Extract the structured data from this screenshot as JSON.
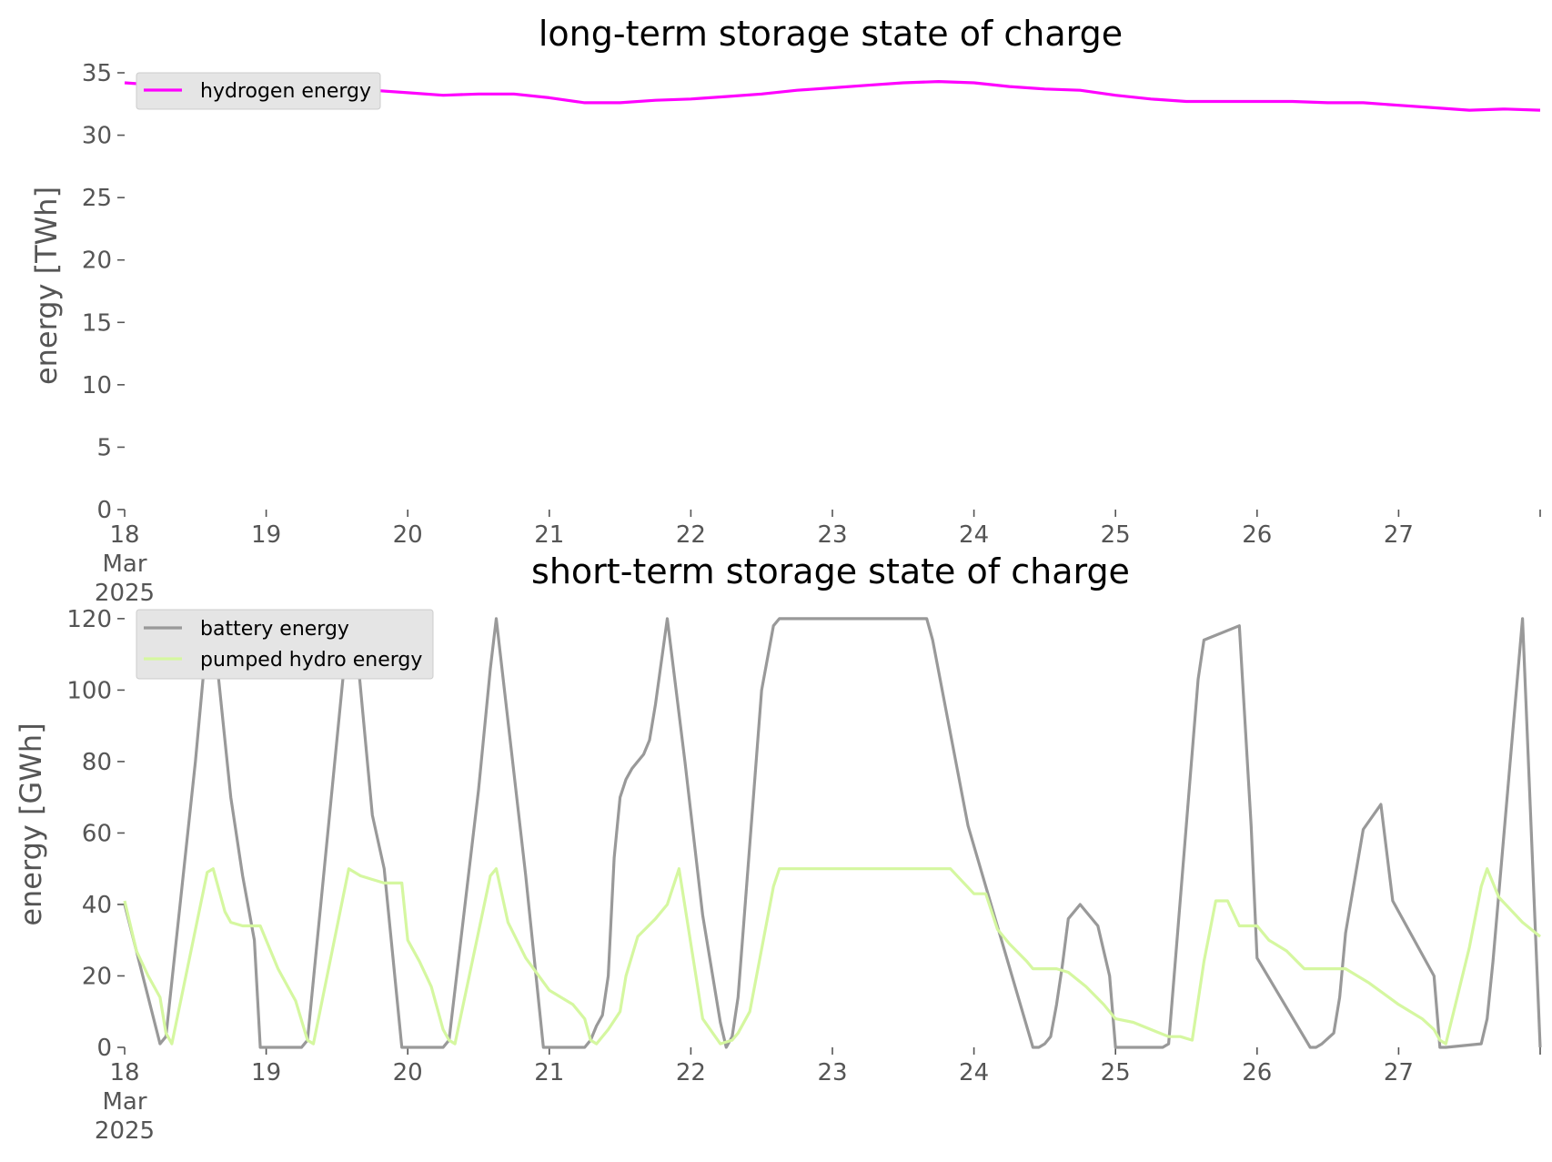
{
  "chart_data": [
    {
      "type": "line",
      "title": "long-term storage state of charge",
      "xlabel": "",
      "ylabel": "energy [TWh]",
      "ylim": [
        0,
        35
      ],
      "yticks": [
        0,
        5,
        10,
        15,
        20,
        25,
        30,
        35
      ],
      "xlim": [
        "2025-03-18T00:00",
        "2025-03-28T00:00"
      ],
      "xticks": [
        {
          "t": "2025-03-18T00:00",
          "label": [
            "18",
            "Mar",
            "2025"
          ]
        },
        {
          "t": "2025-03-19T00:00",
          "label": [
            "19"
          ]
        },
        {
          "t": "2025-03-20T00:00",
          "label": [
            "20"
          ]
        },
        {
          "t": "2025-03-21T00:00",
          "label": [
            "21"
          ]
        },
        {
          "t": "2025-03-22T00:00",
          "label": [
            "22"
          ]
        },
        {
          "t": "2025-03-23T00:00",
          "label": [
            "23"
          ]
        },
        {
          "t": "2025-03-24T00:00",
          "label": [
            "24"
          ]
        },
        {
          "t": "2025-03-25T00:00",
          "label": [
            "25"
          ]
        },
        {
          "t": "2025-03-26T00:00",
          "label": [
            "26"
          ]
        },
        {
          "t": "2025-03-27T00:00",
          "label": [
            "27"
          ]
        },
        {
          "t": "2025-03-28T00:00",
          "label": [
            ""
          ]
        }
      ],
      "grid": false,
      "legend_position": "top-left",
      "series": [
        {
          "name": "hydrogen energy",
          "color": "#ff00ff",
          "x": [
            "2025-03-18T00:00",
            "2025-03-18T06:00",
            "2025-03-18T12:00",
            "2025-03-18T18:00",
            "2025-03-19T00:00",
            "2025-03-19T06:00",
            "2025-03-19T12:00",
            "2025-03-19T18:00",
            "2025-03-20T00:00",
            "2025-03-20T06:00",
            "2025-03-20T12:00",
            "2025-03-20T18:00",
            "2025-03-21T00:00",
            "2025-03-21T06:00",
            "2025-03-21T12:00",
            "2025-03-21T18:00",
            "2025-03-22T00:00",
            "2025-03-22T06:00",
            "2025-03-22T12:00",
            "2025-03-22T18:00",
            "2025-03-23T00:00",
            "2025-03-23T06:00",
            "2025-03-23T12:00",
            "2025-03-23T18:00",
            "2025-03-24T00:00",
            "2025-03-24T06:00",
            "2025-03-24T12:00",
            "2025-03-24T18:00",
            "2025-03-25T00:00",
            "2025-03-25T06:00",
            "2025-03-25T12:00",
            "2025-03-25T18:00",
            "2025-03-26T00:00",
            "2025-03-26T06:00",
            "2025-03-26T12:00",
            "2025-03-26T18:00",
            "2025-03-27T00:00",
            "2025-03-27T06:00",
            "2025-03-27T12:00",
            "2025-03-27T18:00",
            "2025-03-28T00:00"
          ],
          "values": [
            34.2,
            34.0,
            34.1,
            34.3,
            34.1,
            33.8,
            33.6,
            33.6,
            33.4,
            33.2,
            33.3,
            33.3,
            33.0,
            32.6,
            32.6,
            32.8,
            32.9,
            33.1,
            33.3,
            33.6,
            33.8,
            34.0,
            34.2,
            34.3,
            34.2,
            33.9,
            33.7,
            33.6,
            33.2,
            32.9,
            32.7,
            32.7,
            32.7,
            32.7,
            32.6,
            32.6,
            32.4,
            32.2,
            32.0,
            32.1,
            32.0
          ]
        }
      ]
    },
    {
      "type": "line",
      "title": "short-term storage state of charge",
      "xlabel": "",
      "ylabel": "energy [GWh]",
      "ylim": [
        0,
        122
      ],
      "yticks": [
        0,
        20,
        40,
        60,
        80,
        100,
        120
      ],
      "xlim": [
        "2025-03-18T00:00",
        "2025-03-28T00:00"
      ],
      "xticks": [
        {
          "t": "2025-03-18T00:00",
          "label": [
            "18",
            "Mar",
            "2025"
          ]
        },
        {
          "t": "2025-03-19T00:00",
          "label": [
            "19"
          ]
        },
        {
          "t": "2025-03-20T00:00",
          "label": [
            "20"
          ]
        },
        {
          "t": "2025-03-21T00:00",
          "label": [
            "21"
          ]
        },
        {
          "t": "2025-03-22T00:00",
          "label": [
            "22"
          ]
        },
        {
          "t": "2025-03-23T00:00",
          "label": [
            "23"
          ]
        },
        {
          "t": "2025-03-24T00:00",
          "label": [
            "24"
          ]
        },
        {
          "t": "2025-03-25T00:00",
          "label": [
            "25"
          ]
        },
        {
          "t": "2025-03-26T00:00",
          "label": [
            "26"
          ]
        },
        {
          "t": "2025-03-27T00:00",
          "label": [
            "27"
          ]
        },
        {
          "t": "2025-03-28T00:00",
          "label": [
            ""
          ]
        }
      ],
      "grid": false,
      "legend_position": "top-left",
      "series": [
        {
          "name": "battery energy",
          "color": "#999999",
          "x": [
            "2025-03-18T00:00",
            "2025-03-18T06:00",
            "2025-03-18T07:00",
            "2025-03-18T12:00",
            "2025-03-18T14:00",
            "2025-03-18T15:00",
            "2025-03-18T18:00",
            "2025-03-18T20:00",
            "2025-03-18T22:00",
            "2025-03-18T23:00",
            "2025-03-19T06:00",
            "2025-03-19T07:00",
            "2025-03-19T14:00",
            "2025-03-19T15:00",
            "2025-03-19T18:00",
            "2025-03-19T20:00",
            "2025-03-19T23:00",
            "2025-03-20T06:00",
            "2025-03-20T07:00",
            "2025-03-20T12:00",
            "2025-03-20T14:00",
            "2025-03-20T15:00",
            "2025-03-20T20:00",
            "2025-03-20T23:00",
            "2025-03-21T06:00",
            "2025-03-21T07:00",
            "2025-03-21T08:00",
            "2025-03-21T09:00",
            "2025-03-21T10:00",
            "2025-03-21T11:00",
            "2025-03-21T12:00",
            "2025-03-21T13:00",
            "2025-03-21T14:00",
            "2025-03-21T15:00",
            "2025-03-21T16:00",
            "2025-03-21T17:00",
            "2025-03-21T18:00",
            "2025-03-21T20:00",
            "2025-03-21T23:00",
            "2025-03-22T02:00",
            "2025-03-22T05:00",
            "2025-03-22T06:00",
            "2025-03-22T07:00",
            "2025-03-22T08:00",
            "2025-03-22T12:00",
            "2025-03-22T14:00",
            "2025-03-22T15:00",
            "2025-03-22T16:00",
            "2025-03-23T08:00",
            "2025-03-23T16:00",
            "2025-03-23T17:00",
            "2025-03-23T23:00",
            "2025-03-24T10:00",
            "2025-03-24T11:00",
            "2025-03-24T12:00",
            "2025-03-24T13:00",
            "2025-03-24T14:00",
            "2025-03-24T15:00",
            "2025-03-24T16:00",
            "2025-03-24T18:00",
            "2025-03-24T21:00",
            "2025-03-24T23:00",
            "2025-03-25T00:00",
            "2025-03-25T08:00",
            "2025-03-25T09:00",
            "2025-03-25T14:00",
            "2025-03-25T15:00",
            "2025-03-25T21:00",
            "2025-03-25T23:00",
            "2025-03-26T00:00",
            "2025-03-26T09:00",
            "2025-03-26T10:00",
            "2025-03-26T11:00",
            "2025-03-26T13:00",
            "2025-03-26T14:00",
            "2025-03-26T15:00",
            "2025-03-26T18:00",
            "2025-03-26T21:00",
            "2025-03-26T23:00",
            "2025-03-27T06:00",
            "2025-03-27T07:00",
            "2025-03-27T08:00",
            "2025-03-27T14:00",
            "2025-03-27T15:00",
            "2025-03-27T16:00",
            "2025-03-27T21:00",
            "2025-03-28T00:00"
          ],
          "values": [
            40,
            1,
            3,
            80,
            116,
            118,
            70,
            48,
            30,
            0,
            0,
            2,
            120,
            118,
            65,
            50,
            0,
            0,
            2,
            72,
            106,
            120,
            48,
            0,
            0,
            2,
            6,
            9,
            20,
            53,
            70,
            75,
            78,
            80,
            82,
            86,
            96,
            120,
            80,
            37,
            7,
            0,
            3,
            14,
            100,
            118,
            120,
            120,
            120,
            120,
            114,
            62,
            0,
            0,
            1,
            3,
            12,
            23,
            36,
            40,
            34,
            20,
            0,
            0,
            1,
            103,
            114,
            118,
            62,
            25,
            0,
            0,
            1,
            4,
            14,
            32,
            61,
            68,
            41,
            20,
            0,
            0,
            1,
            8,
            24,
            120,
            0
          ]
        },
        {
          "name": "pumped hydro energy",
          "color": "#d5f7a0",
          "x": [
            "2025-03-18T00:00",
            "2025-03-18T02:00",
            "2025-03-18T04:00",
            "2025-03-18T06:00",
            "2025-03-18T07:00",
            "2025-03-18T08:00",
            "2025-03-18T14:00",
            "2025-03-18T15:00",
            "2025-03-18T17:00",
            "2025-03-18T18:00",
            "2025-03-18T20:00",
            "2025-03-18T23:00",
            "2025-03-19T02:00",
            "2025-03-19T05:00",
            "2025-03-19T07:00",
            "2025-03-19T08:00",
            "2025-03-19T14:00",
            "2025-03-19T16:00",
            "2025-03-19T18:00",
            "2025-03-19T20:00",
            "2025-03-19T23:00",
            "2025-03-20T00:00",
            "2025-03-20T02:00",
            "2025-03-20T04:00",
            "2025-03-20T06:00",
            "2025-03-20T07:00",
            "2025-03-20T08:00",
            "2025-03-20T14:00",
            "2025-03-20T15:00",
            "2025-03-20T17:00",
            "2025-03-20T20:00",
            "2025-03-21T00:00",
            "2025-03-21T04:00",
            "2025-03-21T06:00",
            "2025-03-21T07:00",
            "2025-03-21T08:00",
            "2025-03-21T10:00",
            "2025-03-21T12:00",
            "2025-03-21T13:00",
            "2025-03-21T15:00",
            "2025-03-21T18:00",
            "2025-03-21T20:00",
            "2025-03-21T22:00",
            "2025-03-22T02:00",
            "2025-03-22T05:00",
            "2025-03-22T07:00",
            "2025-03-22T08:00",
            "2025-03-22T10:00",
            "2025-03-22T14:00",
            "2025-03-22T15:00",
            "2025-03-22T16:00",
            "2025-03-23T08:00",
            "2025-03-23T16:00",
            "2025-03-23T20:00",
            "2025-03-24T00:00",
            "2025-03-24T02:00",
            "2025-03-24T04:00",
            "2025-03-24T06:00",
            "2025-03-24T09:00",
            "2025-03-24T10:00",
            "2025-03-24T14:00",
            "2025-03-24T16:00",
            "2025-03-24T19:00",
            "2025-03-24T22:00",
            "2025-03-25T00:00",
            "2025-03-25T03:00",
            "2025-03-25T06:00",
            "2025-03-25T09:00",
            "2025-03-25T11:00",
            "2025-03-25T13:00",
            "2025-03-25T15:00",
            "2025-03-25T17:00",
            "2025-03-25T19:00",
            "2025-03-25T21:00",
            "2025-03-26T00:00",
            "2025-03-26T02:00",
            "2025-03-26T05:00",
            "2025-03-26T08:00",
            "2025-03-26T11:00",
            "2025-03-26T15:00",
            "2025-03-26T19:00",
            "2025-03-27T00:00",
            "2025-03-27T04:00",
            "2025-03-27T06:00",
            "2025-03-27T07:00",
            "2025-03-27T08:00",
            "2025-03-27T12:00",
            "2025-03-27T14:00",
            "2025-03-27T15:00",
            "2025-03-27T17:00",
            "2025-03-27T21:00",
            "2025-03-28T00:00"
          ],
          "values": [
            41,
            27,
            20,
            14,
            4,
            1,
            49,
            50,
            38,
            35,
            34,
            34,
            22,
            13,
            2,
            1,
            50,
            48,
            47,
            46,
            46,
            30,
            24,
            17,
            5,
            2,
            1,
            48,
            50,
            35,
            25,
            16,
            12,
            8,
            2,
            1,
            5,
            10,
            20,
            31,
            36,
            40,
            50,
            8,
            1,
            2,
            4,
            10,
            45,
            50,
            50,
            50,
            50,
            50,
            43,
            43,
            33,
            29,
            24,
            22,
            22,
            21,
            17,
            12,
            8,
            7,
            5,
            3,
            3,
            2,
            24,
            41,
            41,
            34,
            34,
            30,
            27,
            22,
            22,
            22,
            18,
            12,
            8,
            5,
            2,
            1,
            28,
            45,
            50,
            42,
            35,
            31
          ]
        }
      ]
    }
  ]
}
